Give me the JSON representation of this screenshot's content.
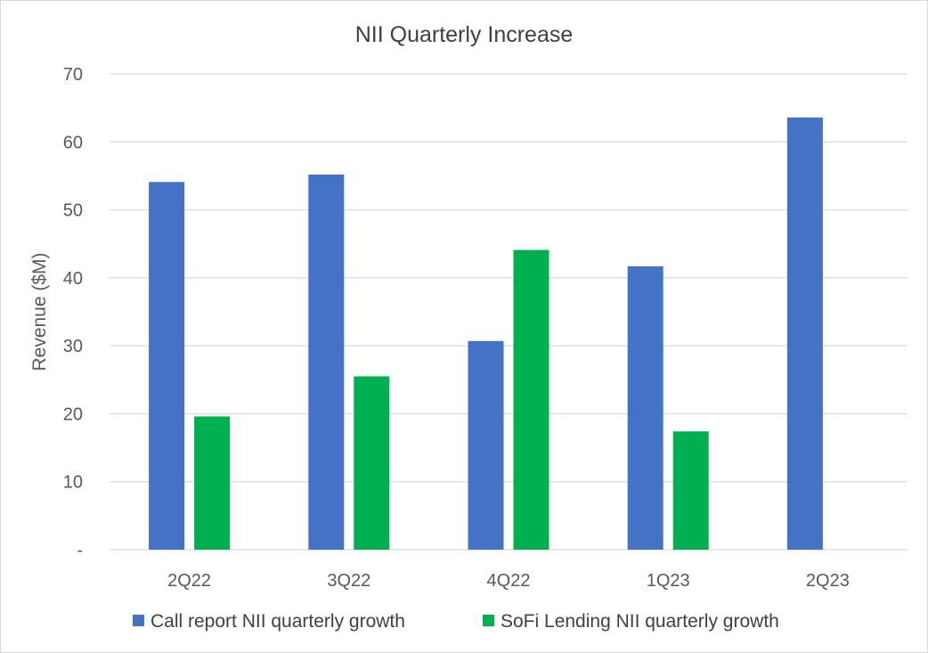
{
  "chart_data": {
    "type": "bar",
    "title": "NII Quarterly Increase",
    "xlabel": "",
    "ylabel": "Revenue ($M)",
    "categories": [
      "2Q22",
      "3Q22",
      "4Q22",
      "1Q23",
      "2Q23"
    ],
    "series": [
      {
        "name": "Call report NII quarterly growth",
        "color": "#4472C4",
        "values": [
          54.1,
          55.2,
          30.7,
          41.7,
          63.6
        ]
      },
      {
        "name": "SoFi Lending NII quarterly growth",
        "color": "#00B050",
        "values": [
          19.6,
          25.5,
          44.1,
          17.4,
          null
        ]
      }
    ],
    "ylim": [
      0,
      70
    ],
    "yticks": [
      0,
      10,
      20,
      30,
      40,
      50,
      60,
      70
    ],
    "ytick_labels": [
      "-",
      "10",
      "20",
      "30",
      "40",
      "50",
      "60",
      "70"
    ],
    "grid": true,
    "legend_position": "bottom"
  }
}
